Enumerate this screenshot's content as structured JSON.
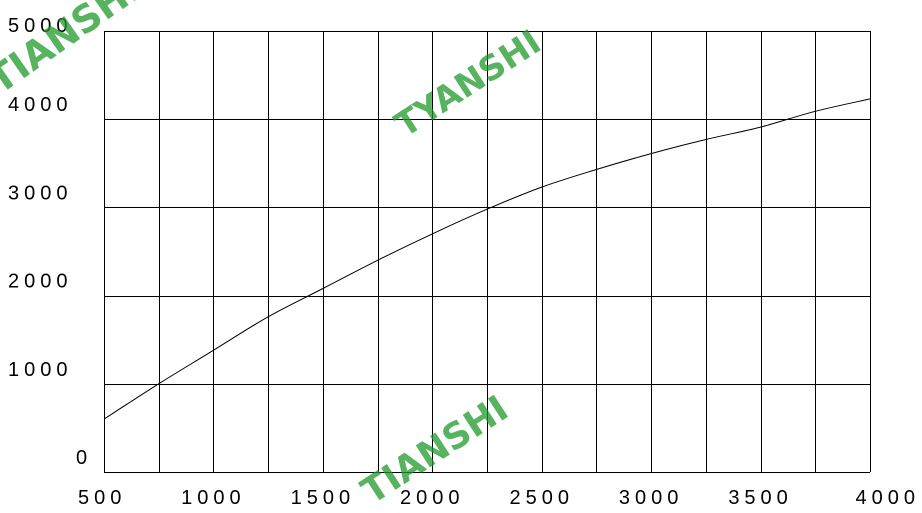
{
  "chart_data": {
    "type": "line",
    "title": "",
    "xlabel": "",
    "ylabel": "",
    "x_ticks": [
      500,
      1000,
      1500,
      2000,
      2500,
      3000,
      3500,
      4000
    ],
    "y_ticks": [
      0,
      1000,
      2000,
      3000,
      4000,
      5000
    ],
    "xlim": [
      500,
      4000
    ],
    "ylim": [
      0,
      5000
    ],
    "x_grid_step": 250,
    "y_grid_step": 1000,
    "grid": true,
    "series": [
      {
        "x": [
          500,
          750,
          1000,
          1250,
          1500,
          1750,
          2000,
          2250,
          2500,
          2750,
          3000,
          3250,
          3500,
          3750,
          4000
        ],
        "values": [
          600,
          1000,
          1380,
          1760,
          2080,
          2400,
          2700,
          2980,
          3230,
          3430,
          3610,
          3770,
          3910,
          4090,
          4230
        ]
      }
    ]
  },
  "watermarks": [
    "TIANSHI",
    "TYANSHI",
    "TIANSHI"
  ],
  "colors": {
    "watermark": "#1f9a2a",
    "line": "#000000",
    "grid": "#000000"
  }
}
